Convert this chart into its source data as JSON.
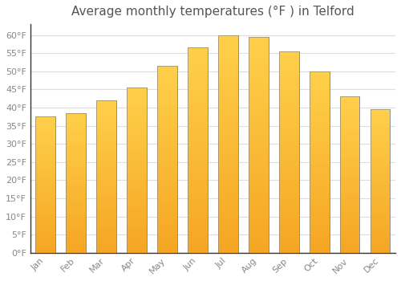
{
  "title": "Average monthly temperatures (°F ) in Telford",
  "months": [
    "Jan",
    "Feb",
    "Mar",
    "Apr",
    "May",
    "Jun",
    "Jul",
    "Aug",
    "Sep",
    "Oct",
    "Nov",
    "Dec"
  ],
  "values": [
    37.5,
    38.5,
    42.0,
    45.5,
    51.5,
    56.5,
    60.0,
    59.5,
    55.5,
    50.0,
    43.0,
    39.5
  ],
  "bar_color_top": "#FFD04B",
  "bar_color_bottom": "#F5A623",
  "bar_edge_color": "#888888",
  "background_color": "#FFFFFF",
  "plot_bg_color": "#FFFFFF",
  "grid_color": "#DDDDDD",
  "ytick_labels": [
    "0°F",
    "5°F",
    "10°F",
    "15°F",
    "20°F",
    "25°F",
    "30°F",
    "35°F",
    "40°F",
    "45°F",
    "50°F",
    "55°F",
    "60°F"
  ],
  "ytick_values": [
    0,
    5,
    10,
    15,
    20,
    25,
    30,
    35,
    40,
    45,
    50,
    55,
    60
  ],
  "ylim": [
    0,
    63
  ],
  "title_fontsize": 11,
  "tick_fontsize": 8,
  "tick_color": "#888888",
  "spine_color": "#333333",
  "title_color": "#555555"
}
